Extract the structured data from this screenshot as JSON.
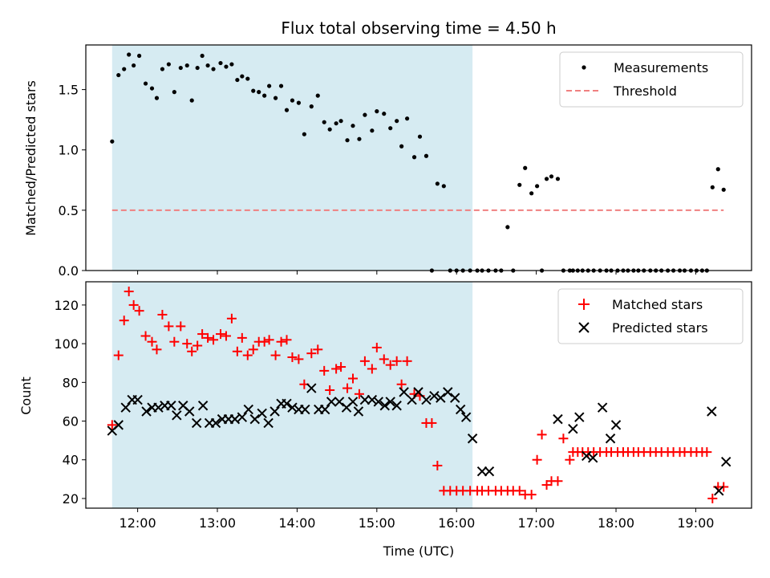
{
  "chart_data": {
    "type": "scatter",
    "title": "Flux total observing time = 4.50 h",
    "xlabel": "Time (UTC)",
    "x_unit": "hours UTC",
    "xlim": [
      11.35,
      19.7
    ],
    "x_ticks": [
      12,
      13,
      14,
      15,
      16,
      17,
      18,
      19
    ],
    "x_tick_labels": [
      "12:00",
      "13:00",
      "14:00",
      "15:00",
      "16:00",
      "17:00",
      "18:00",
      "19:00"
    ],
    "shaded_span": [
      11.68,
      16.2
    ],
    "shaded_color": "#add8e6",
    "panels": [
      {
        "ylabel": "Matched/Predicted stars",
        "ylim": [
          0,
          1.87
        ],
        "y_ticks": [
          0,
          0.5,
          1.0,
          1.5
        ],
        "y_tick_labels": [
          "0.0",
          "0.5",
          "1.0",
          "1.5"
        ],
        "legend": {
          "position": "top-right",
          "entries": [
            "Measurements",
            "Threshold"
          ]
        },
        "threshold": {
          "name": "Threshold",
          "y": 0.5,
          "x_range": [
            11.68,
            19.35
          ],
          "color": "#f08080",
          "style": "dashed"
        },
        "series": [
          {
            "name": "Measurements",
            "marker": "dot",
            "color": "#000000",
            "x": [
              11.68,
              11.76,
              11.83,
              11.89,
              11.95,
              12.02,
              12.1,
              12.18,
              12.24,
              12.31,
              12.39,
              12.46,
              12.54,
              12.62,
              12.68,
              12.75,
              12.81,
              12.88,
              12.95,
              13.04,
              13.11,
              13.18,
              13.25,
              13.31,
              13.38,
              13.45,
              13.52,
              13.59,
              13.65,
              13.73,
              13.8,
              13.87,
              13.94,
              14.02,
              14.09,
              14.18,
              14.26,
              14.34,
              14.41,
              14.49,
              14.55,
              14.63,
              14.7,
              14.78,
              14.85,
              14.94,
              15.0,
              15.09,
              15.17,
              15.25,
              15.31,
              15.38,
              15.47,
              15.54,
              15.62,
              15.69,
              15.76,
              15.84,
              15.92,
              16.0,
              16.08,
              16.17,
              16.26,
              16.32,
              16.4,
              16.49,
              16.56,
              16.64,
              16.71,
              16.79,
              16.86,
              16.94,
              17.01,
              17.07,
              17.13,
              17.19,
              17.27,
              17.34,
              17.42,
              17.46,
              17.52,
              17.58,
              17.65,
              17.72,
              17.8,
              17.88,
              17.94,
              18.02,
              18.09,
              18.15,
              18.22,
              18.28,
              18.35,
              18.43,
              18.5,
              18.57,
              18.65,
              18.72,
              18.8,
              18.86,
              18.94,
              19.01,
              19.08,
              19.14,
              19.21,
              19.28,
              19.35
            ],
            "y": [
              1.07,
              1.62,
              1.67,
              1.79,
              1.7,
              1.78,
              1.55,
              1.51,
              1.43,
              1.67,
              1.71,
              1.48,
              1.68,
              1.7,
              1.41,
              1.68,
              1.78,
              1.7,
              1.67,
              1.72,
              1.69,
              1.71,
              1.58,
              1.61,
              1.59,
              1.49,
              1.48,
              1.45,
              1.53,
              1.43,
              1.53,
              1.33,
              1.41,
              1.39,
              1.13,
              1.36,
              1.45,
              1.23,
              1.17,
              1.22,
              1.24,
              1.08,
              1.2,
              1.09,
              1.29,
              1.16,
              1.32,
              1.3,
              1.18,
              1.24,
              1.03,
              1.26,
              0.94,
              1.11,
              0.95,
              0.0,
              0.72,
              0.7,
              0.0,
              0.0,
              0.0,
              0.0,
              0.0,
              0.0,
              0.0,
              0.0,
              0.0,
              0.36,
              0.0,
              0.71,
              0.85,
              0.64,
              0.7,
              0.0,
              0.76,
              0.78,
              0.76,
              0.0,
              0.0,
              0.0,
              0.0,
              0.0,
              0.0,
              0.0,
              0.0,
              0.0,
              0.0,
              0.0,
              0.0,
              0.0,
              0.0,
              0.0,
              0.0,
              0.0,
              0.0,
              0.0,
              0.0,
              0.0,
              0.0,
              0.0,
              0.0,
              0.0,
              0.0,
              0.0,
              0.69,
              0.84,
              0.67
            ]
          }
        ]
      },
      {
        "ylabel": "Count",
        "ylim": [
          15,
          132
        ],
        "y_ticks": [
          20,
          40,
          60,
          80,
          100,
          120
        ],
        "y_tick_labels": [
          "20",
          "40",
          "60",
          "80",
          "100",
          "120"
        ],
        "legend": {
          "position": "top-right",
          "entries": [
            "Matched stars",
            "Predicted stars"
          ]
        },
        "series": [
          {
            "name": "Matched stars",
            "marker": "plus",
            "color": "#ff0000",
            "x": [
              11.68,
              11.76,
              11.83,
              11.89,
              11.95,
              12.02,
              12.1,
              12.18,
              12.24,
              12.31,
              12.39,
              12.46,
              12.54,
              12.62,
              12.68,
              12.75,
              12.81,
              12.88,
              12.95,
              13.04,
              13.11,
              13.18,
              13.25,
              13.31,
              13.38,
              13.45,
              13.52,
              13.59,
              13.65,
              13.73,
              13.8,
              13.87,
              13.94,
              14.02,
              14.09,
              14.18,
              14.26,
              14.34,
              14.41,
              14.49,
              14.55,
              14.63,
              14.7,
              14.78,
              14.85,
              14.94,
              15.0,
              15.09,
              15.17,
              15.25,
              15.31,
              15.38,
              15.47,
              15.54,
              15.62,
              15.69,
              15.76,
              15.84,
              15.92,
              16.0,
              16.08,
              16.17,
              16.26,
              16.32,
              16.4,
              16.49,
              16.56,
              16.64,
              16.71,
              16.79,
              16.86,
              16.94,
              17.01,
              17.07,
              17.13,
              17.19,
              17.27,
              17.34,
              17.42,
              17.46,
              17.52,
              17.58,
              17.65,
              17.72,
              17.8,
              17.88,
              17.94,
              18.02,
              18.09,
              18.15,
              18.22,
              18.28,
              18.35,
              18.43,
              18.5,
              18.57,
              18.65,
              18.72,
              18.8,
              18.86,
              18.94,
              19.01,
              19.08,
              19.14,
              19.21,
              19.28,
              19.35
            ],
            "y": [
              58,
              94,
              112,
              127,
              120,
              117,
              104,
              101,
              97,
              115,
              109,
              101,
              109,
              100,
              96,
              99,
              105,
              103,
              102,
              105,
              104,
              113,
              96,
              103,
              94,
              97,
              101,
              101,
              102,
              94,
              101,
              102,
              93,
              92,
              79,
              95,
              97,
              86,
              76,
              87,
              88,
              77,
              82,
              74,
              91,
              87,
              98,
              92,
              89,
              91,
              79,
              91,
              74,
              73,
              59,
              59,
              37,
              24,
              24,
              24,
              24,
              24,
              24,
              24,
              24,
              24,
              24,
              24,
              24,
              24,
              22,
              22,
              40,
              53,
              27,
              29,
              29,
              51,
              40,
              44,
              44,
              44,
              44,
              44,
              44,
              44,
              44,
              44,
              44,
              44,
              44,
              44,
              44,
              44,
              44,
              44,
              44,
              44,
              44,
              44,
              44,
              44,
              44,
              44,
              20,
              26,
              26
            ],
            "y_note_removed": true
          },
          {
            "name": "Predicted stars",
            "marker": "x",
            "color": "#000000",
            "x": [
              11.68,
              11.76,
              11.85,
              11.93,
              12.0,
              12.11,
              12.18,
              12.26,
              12.34,
              12.42,
              12.49,
              12.57,
              12.65,
              12.74,
              12.82,
              12.9,
              12.98,
              13.06,
              13.14,
              13.22,
              13.31,
              13.39,
              13.47,
              13.56,
              13.64,
              13.72,
              13.8,
              13.87,
              13.94,
              14.02,
              14.1,
              14.18,
              14.27,
              14.35,
              14.43,
              14.53,
              14.62,
              14.7,
              14.77,
              14.85,
              14.94,
              15.02,
              15.1,
              15.17,
              15.25,
              15.34,
              15.44,
              15.52,
              15.62,
              15.72,
              15.8,
              15.89,
              15.98,
              16.05,
              16.12,
              16.2,
              16.32,
              16.41,
              17.27,
              17.46,
              17.54,
              17.63,
              17.71,
              17.83,
              17.93,
              18.0,
              19.2,
              19.29,
              19.38
            ],
            "y": [
              55,
              58,
              67,
              71,
              71,
              65,
              67,
              67,
              68,
              68,
              63,
              68,
              65,
              59,
              68,
              59,
              59,
              61,
              61,
              61,
              62,
              66,
              61,
              64,
              59,
              65,
              69,
              69,
              67,
              66,
              66,
              77,
              66,
              66,
              70,
              70,
              67,
              70,
              65,
              71,
              71,
              70,
              68,
              70,
              68,
              75,
              71,
              75,
              71,
              73,
              72,
              75,
              72,
              66,
              62,
              51,
              34,
              34,
              61,
              56,
              62,
              42,
              41,
              67,
              51,
              58,
              65,
              24,
              39
            ]
          }
        ]
      }
    ]
  }
}
